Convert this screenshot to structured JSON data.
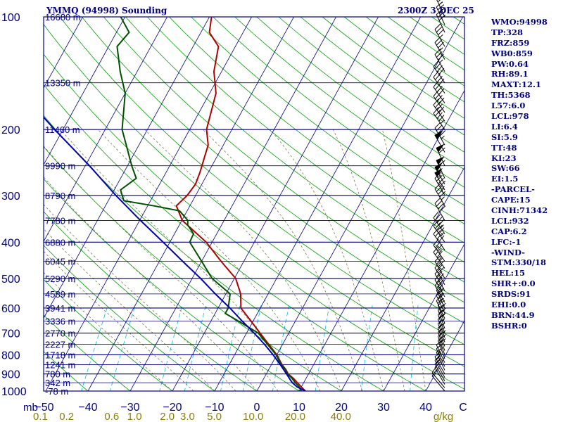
{
  "title": "YMMQ (94998) Sounding",
  "valid_time": "2300Z  3 DEC 25",
  "indices": [
    "WMO:94998",
    "TP:328",
    "FRZ:859",
    "WB0:859",
    "PW:0.64",
    "RH:89.1",
    "MAXT:12.1",
    "TH:5368",
    "L57:6.0",
    "LCL:978",
    "LI:6.4",
    "SI:5.9",
    "TT:48",
    "KI:23",
    "SW:66",
    "EI:1.5",
    "-PARCEL-",
    "CAPE:15",
    "CINH:71342",
    "LCL:932",
    "CAP:6.2",
    "LFC:-1",
    "-WIND-",
    "STM:330/18",
    "HEL:15",
    "SHR+:0.0",
    "SRDS:91",
    "EHI:0.0",
    "BRN:44.9",
    "BSHR:0"
  ],
  "colors": {
    "header_text": "#000080",
    "isobar": "#000080",
    "isotherm": "#000080",
    "dry_adiabat": "#00a000",
    "moist_adiabat": "#7a7a4a",
    "mixing_ratio": "#00c0e0",
    "temperature": "#b00000",
    "dewpoint": "#005000",
    "parcel": "#0000b0",
    "pressure_label": "#000080",
    "height_label": "#000080",
    "mixing_label": "#8c8000",
    "wind_barb": "#000000"
  },
  "chart_data": {
    "type": "skew-t log-p sounding",
    "pressure_axis": {
      "unit": "mb",
      "range": [
        1000,
        100
      ],
      "tick_labels": [
        100,
        200,
        300,
        400,
        500,
        600,
        700,
        800,
        900,
        1000
      ]
    },
    "temperature_axis": {
      "unit": "C",
      "range": [
        -50,
        50
      ],
      "tick_labels": [
        -50,
        -40,
        -30,
        -20,
        -10,
        0,
        10,
        20,
        30,
        40
      ]
    },
    "mixing_ratio_axis": {
      "unit": "g/kg",
      "tick_labels": [
        "0.1",
        "0.2",
        "0.6",
        "1.0",
        "2.0",
        "3.0",
        "5.0",
        "10.0",
        "20.0",
        "40.0"
      ],
      "values": [
        0.1,
        0.2,
        0.6,
        1.0,
        2.0,
        3.0,
        5.0,
        10.0,
        20.0,
        40.0
      ]
    },
    "height_labels": [
      {
        "p": 100,
        "label": "16680 m"
      },
      {
        "p": 150,
        "label": "13350 m"
      },
      {
        "p": 200,
        "label": "11460 m"
      },
      {
        "p": 250,
        "label": "9990 m"
      },
      {
        "p": 300,
        "label": "8790 m"
      },
      {
        "p": 350,
        "label": "7780 m"
      },
      {
        "p": 400,
        "label": "6880 m"
      },
      {
        "p": 450,
        "label": "6045 m"
      },
      {
        "p": 500,
        "label": "5290 m"
      },
      {
        "p": 550,
        "label": "4589 m"
      },
      {
        "p": 600,
        "label": "3941 m"
      },
      {
        "p": 650,
        "label": "3336 m"
      },
      {
        "p": 700,
        "label": "2770 m"
      },
      {
        "p": 750,
        "label": "2227 m"
      },
      {
        "p": 800,
        "label": "1718 m"
      },
      {
        "p": 850,
        "label": "1241 m"
      },
      {
        "p": 900,
        "label": "780 m"
      },
      {
        "p": 950,
        "label": "342 m"
      },
      {
        "p": 1000,
        "label": "-78 m"
      }
    ],
    "series": [
      {
        "name": "temperature",
        "unit": "C",
        "points": [
          [
            1015,
            12.1
          ],
          [
            1000,
            11.5
          ],
          [
            975,
            10.0
          ],
          [
            950,
            8.5
          ],
          [
            925,
            7.0
          ],
          [
            900,
            5.2
          ],
          [
            875,
            4.0
          ],
          [
            850,
            2.5
          ],
          [
            800,
            0.0
          ],
          [
            750,
            -3.3
          ],
          [
            700,
            -6.8
          ],
          [
            650,
            -10.5
          ],
          [
            600,
            -14.6
          ],
          [
            550,
            -16.5
          ],
          [
            500,
            -19.7
          ],
          [
            450,
            -25.4
          ],
          [
            400,
            -31.4
          ],
          [
            350,
            -39.9
          ],
          [
            320,
            -43.2
          ],
          [
            300,
            -42.0
          ],
          [
            280,
            -41.5
          ],
          [
            260,
            -42.0
          ],
          [
            220,
            -43.6
          ],
          [
            200,
            -46.0
          ],
          [
            160,
            -48.5
          ],
          [
            140,
            -51.8
          ],
          [
            120,
            -54.0
          ],
          [
            110,
            -58.0
          ],
          [
            100,
            -59.5
          ]
        ]
      },
      {
        "name": "dewpoint",
        "unit": "C",
        "points": [
          [
            1010,
            11.5
          ],
          [
            1000,
            10.5
          ],
          [
            975,
            9.5
          ],
          [
            950,
            8.0
          ],
          [
            925,
            6.7
          ],
          [
            900,
            5.0
          ],
          [
            875,
            3.9
          ],
          [
            850,
            2.3
          ],
          [
            800,
            -0.2
          ],
          [
            750,
            -3.6
          ],
          [
            700,
            -7.2
          ],
          [
            650,
            -13.5
          ],
          [
            620,
            -17.6
          ],
          [
            600,
            -17.6
          ],
          [
            550,
            -19.0
          ],
          [
            500,
            -25.3
          ],
          [
            450,
            -30.0
          ],
          [
            400,
            -35.3
          ],
          [
            380,
            -35.5
          ],
          [
            360,
            -38.0
          ],
          [
            350,
            -38.6
          ],
          [
            330,
            -41.8
          ],
          [
            320,
            -48.5
          ],
          [
            310,
            -56.3
          ],
          [
            290,
            -58.5
          ],
          [
            270,
            -56.3
          ],
          [
            250,
            -59.0
          ],
          [
            220,
            -63.0
          ],
          [
            200,
            -66.0
          ],
          [
            160,
            -70.0
          ],
          [
            140,
            -74.0
          ],
          [
            120,
            -78.0
          ],
          [
            110,
            -77.0
          ],
          [
            100,
            -81.0
          ]
        ]
      },
      {
        "name": "parcel",
        "unit": "C",
        "points": [
          [
            1000,
            11.5
          ],
          [
            975,
            9.0
          ],
          [
            950,
            7.3
          ],
          [
            932,
            6.4
          ],
          [
            900,
            4.8
          ],
          [
            850,
            2.1
          ],
          [
            800,
            -0.9
          ],
          [
            750,
            -4.3
          ],
          [
            700,
            -8.2
          ],
          [
            650,
            -12.6
          ],
          [
            600,
            -17.2
          ],
          [
            550,
            -22.5
          ],
          [
            500,
            -28.0
          ],
          [
            450,
            -34.5
          ],
          [
            400,
            -41.6
          ],
          [
            350,
            -49.8
          ],
          [
            300,
            -58.9
          ],
          [
            250,
            -69.0
          ],
          [
            200,
            -82.0
          ],
          [
            150,
            -98.0
          ],
          [
            120,
            -108.0
          ]
        ]
      }
    ],
    "wind_profile": {
      "unit": "kt",
      "levels": [
        {
          "p": 1000,
          "dir": 320,
          "spd": 10
        },
        {
          "p": 980,
          "dir": 320,
          "spd": 10
        },
        {
          "p": 960,
          "dir": 330,
          "spd": 10
        },
        {
          "p": 940,
          "dir": 330,
          "spd": 10
        },
        {
          "p": 920,
          "dir": 330,
          "spd": 15
        },
        {
          "p": 900,
          "dir": 330,
          "spd": 15
        },
        {
          "p": 880,
          "dir": 335,
          "spd": 15
        },
        {
          "p": 860,
          "dir": 335,
          "spd": 15
        },
        {
          "p": 840,
          "dir": 335,
          "spd": 15
        },
        {
          "p": 820,
          "dir": 340,
          "spd": 20
        },
        {
          "p": 800,
          "dir": 340,
          "spd": 20
        },
        {
          "p": 780,
          "dir": 340,
          "spd": 20
        },
        {
          "p": 760,
          "dir": 340,
          "spd": 15
        },
        {
          "p": 740,
          "dir": 340,
          "spd": 15
        },
        {
          "p": 720,
          "dir": 340,
          "spd": 15
        },
        {
          "p": 700,
          "dir": 340,
          "spd": 20
        },
        {
          "p": 680,
          "dir": 340,
          "spd": 20
        },
        {
          "p": 660,
          "dir": 340,
          "spd": 20
        },
        {
          "p": 640,
          "dir": 335,
          "spd": 20
        },
        {
          "p": 620,
          "dir": 335,
          "spd": 25
        },
        {
          "p": 600,
          "dir": 335,
          "spd": 25
        },
        {
          "p": 580,
          "dir": 330,
          "spd": 25
        },
        {
          "p": 560,
          "dir": 330,
          "spd": 30
        },
        {
          "p": 540,
          "dir": 330,
          "spd": 30
        },
        {
          "p": 520,
          "dir": 330,
          "spd": 30
        },
        {
          "p": 500,
          "dir": 330,
          "spd": 30
        },
        {
          "p": 470,
          "dir": 325,
          "spd": 35
        },
        {
          "p": 450,
          "dir": 325,
          "spd": 35
        },
        {
          "p": 420,
          "dir": 325,
          "spd": 40
        },
        {
          "p": 400,
          "dir": 325,
          "spd": 45
        },
        {
          "p": 380,
          "dir": 325,
          "spd": 45
        },
        {
          "p": 350,
          "dir": 330,
          "spd": 40
        },
        {
          "p": 320,
          "dir": 330,
          "spd": 45
        },
        {
          "p": 300,
          "dir": 330,
          "spd": 45
        },
        {
          "p": 290,
          "dir": 330,
          "spd": 55
        },
        {
          "p": 280,
          "dir": 330,
          "spd": 55
        },
        {
          "p": 270,
          "dir": 335,
          "spd": 60
        },
        {
          "p": 250,
          "dir": 335,
          "spd": 60
        },
        {
          "p": 230,
          "dir": 330,
          "spd": 50
        },
        {
          "p": 220,
          "dir": 330,
          "spd": 45
        },
        {
          "p": 200,
          "dir": 325,
          "spd": 45
        },
        {
          "p": 190,
          "dir": 325,
          "spd": 40
        },
        {
          "p": 180,
          "dir": 325,
          "spd": 40
        },
        {
          "p": 170,
          "dir": 325,
          "spd": 40
        },
        {
          "p": 160,
          "dir": 325,
          "spd": 40
        },
        {
          "p": 150,
          "dir": 325,
          "spd": 40
        },
        {
          "p": 140,
          "dir": 330,
          "spd": 35
        },
        {
          "p": 130,
          "dir": 330,
          "spd": 35
        },
        {
          "p": 120,
          "dir": 330,
          "spd": 35
        },
        {
          "p": 110,
          "dir": 335,
          "spd": 30
        },
        {
          "p": 105,
          "dir": 335,
          "spd": 30
        },
        {
          "p": 100,
          "dir": 335,
          "spd": 25
        }
      ]
    }
  }
}
